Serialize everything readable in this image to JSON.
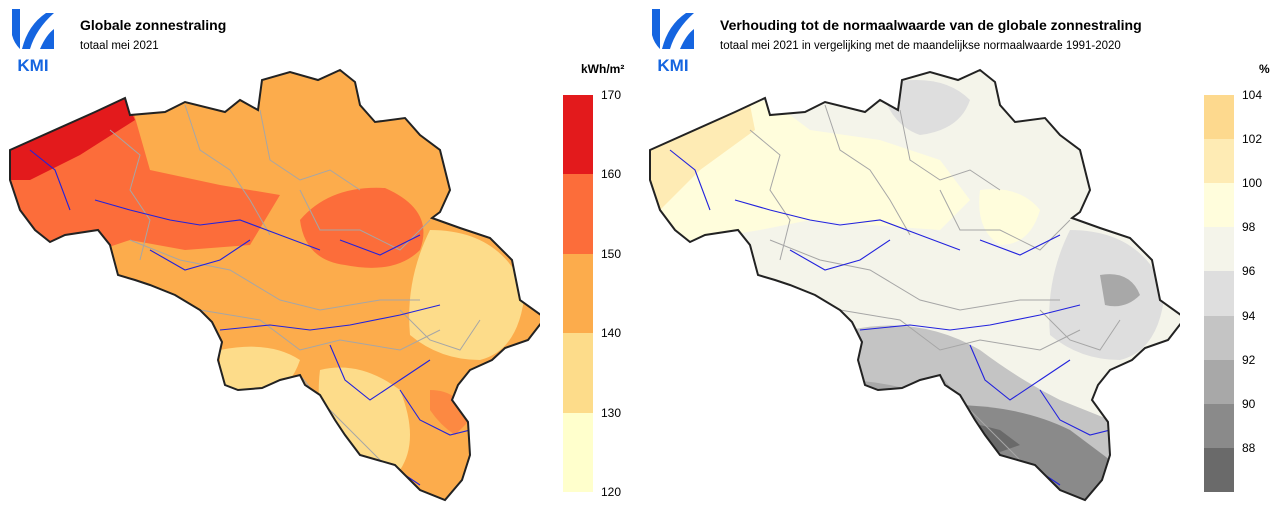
{
  "logo_text": "KMI",
  "left": {
    "title": "Globale zonnestraling",
    "subtitle": "totaal mei 2021",
    "unit": "kWh/m²",
    "legend": {
      "ticks": [
        "170",
        "160",
        "150",
        "140",
        "130",
        "120"
      ],
      "colors": [
        "#e31a1c",
        "#fc6d3a",
        "#fcac4c",
        "#fddc8a",
        "#ffffcc"
      ]
    }
  },
  "right": {
    "title": "Verhouding tot de normaalwaarde van de globale zonnestraling",
    "subtitle": "totaal mei 2021 in vergelijking met de maandelijkse normaalwaarde 1991-2020",
    "unit": "%",
    "legend": {
      "ticks": [
        "104",
        "102",
        "100",
        "98",
        "96",
        "94",
        "92",
        "90",
        "88"
      ],
      "colors": [
        "#fdd98e",
        "#feebb4",
        "#fffddc",
        "#f4f4ea",
        "#dedede",
        "#c4c4c4",
        "#a8a8a8",
        "#8a8a8a",
        "#6a6a6a"
      ]
    }
  }
}
